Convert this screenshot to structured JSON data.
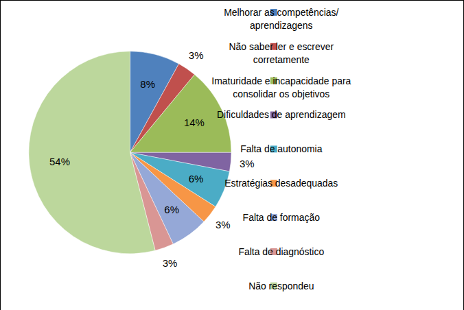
{
  "chart_data": {
    "type": "pie",
    "categories": [
      "Melhorar as competências/ aprendizagens",
      "Não saber ler e escrever corretamente",
      "Imaturidade e incapacidade para consolidar os objetivos",
      "Dificuldades de aprendizagem",
      "Falta de autonomia",
      "Estratégias desadequadas",
      "Falta de formação",
      "Falta de diagnóstico",
      "Não respondeu"
    ],
    "values": [
      8,
      3,
      14,
      3,
      6,
      3,
      6,
      3,
      54
    ],
    "value_labels": [
      "8%",
      "3%",
      "14%",
      "3%",
      "6%",
      "3%",
      "6%",
      "3%",
      "54%"
    ],
    "colors": [
      "#4f81bd",
      "#c0504d",
      "#9bbb59",
      "#8064a2",
      "#4bacc6",
      "#f79646",
      "#95a8d7",
      "#d99694",
      "#bcd79c"
    ],
    "data_labels": true,
    "legend": "right"
  }
}
